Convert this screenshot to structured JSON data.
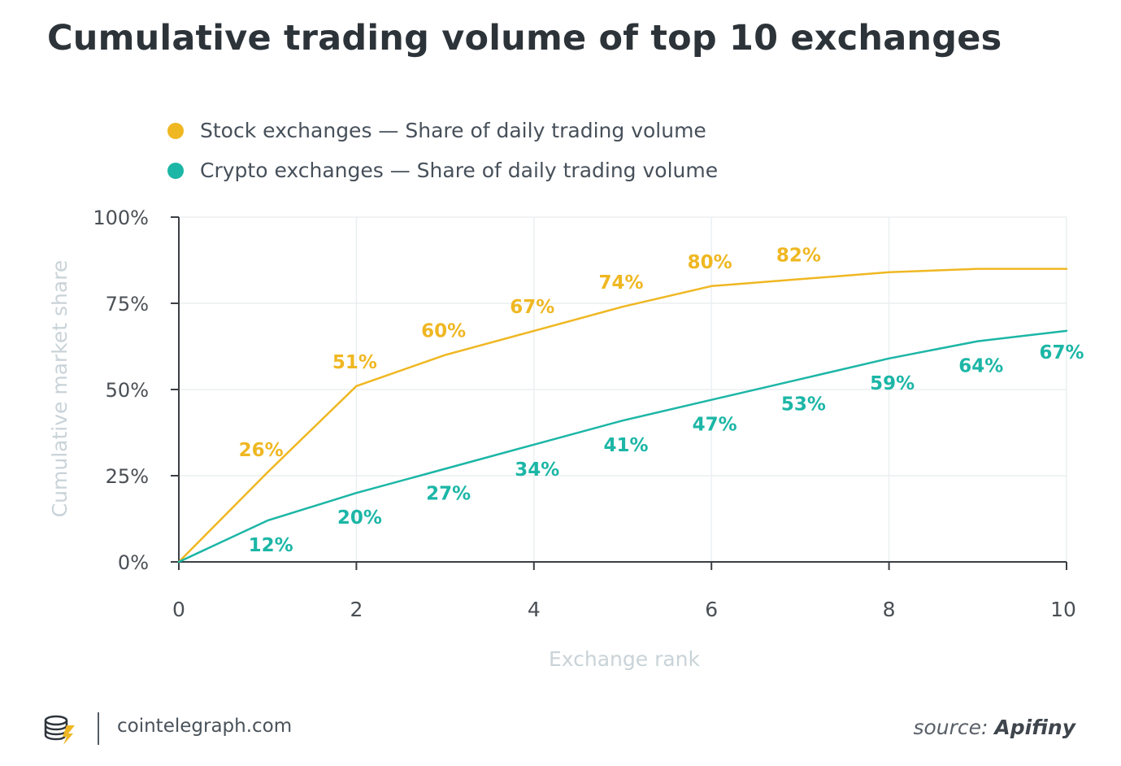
{
  "colors": {
    "stock": "#efb722",
    "crypto": "#1cb6a6",
    "axis": "#3b3f44",
    "grid": "#eceff1",
    "tick_label": "#4a4f55",
    "axis_title": "#c9d3d8"
  },
  "chart_data": {
    "type": "line",
    "title": "Cumulative trading volume of top 10 exchanges",
    "xlabel": "Exchange rank",
    "ylabel": "Cumulative market share",
    "xlim": [
      0,
      10
    ],
    "ylim": [
      0,
      100
    ],
    "x_ticks": [
      "0",
      "2",
      "4",
      "6",
      "8",
      "10"
    ],
    "x_tick_values": [
      0,
      2,
      4,
      6,
      8,
      10
    ],
    "y_ticks": [
      "0%",
      "25%",
      "50%",
      "75%",
      "100%"
    ],
    "y_tick_values": [
      0,
      25,
      50,
      75,
      100
    ],
    "grid": true,
    "legend_position": "top-left",
    "series": [
      {
        "name": "Stock exchanges — Share of daily trading volume",
        "key": "stock",
        "x": [
          0,
          1,
          2,
          3,
          4,
          5,
          6,
          7,
          8,
          9,
          10
        ],
        "values": [
          0,
          26,
          51,
          60,
          67,
          74,
          80,
          82,
          84,
          85,
          85
        ],
        "data_labels": [
          "",
          "26%",
          "51%",
          "60%",
          "67%",
          "74%",
          "80%",
          "82%",
          "",
          "",
          ""
        ]
      },
      {
        "name": "Crypto exchanges — Share of daily trading volume",
        "key": "crypto",
        "x": [
          0,
          1,
          2,
          3,
          4,
          5,
          6,
          7,
          8,
          9,
          10
        ],
        "values": [
          0,
          12,
          20,
          27,
          34,
          41,
          47,
          53,
          59,
          64,
          67
        ],
        "data_labels": [
          "",
          "12%",
          "20%",
          "27%",
          "34%",
          "41%",
          "47%",
          "53%",
          "59%",
          "64%",
          "67%"
        ]
      }
    ]
  },
  "footer": {
    "site": "cointelegraph.com",
    "source_prefix": "source:",
    "source_name": "Apifiny"
  }
}
